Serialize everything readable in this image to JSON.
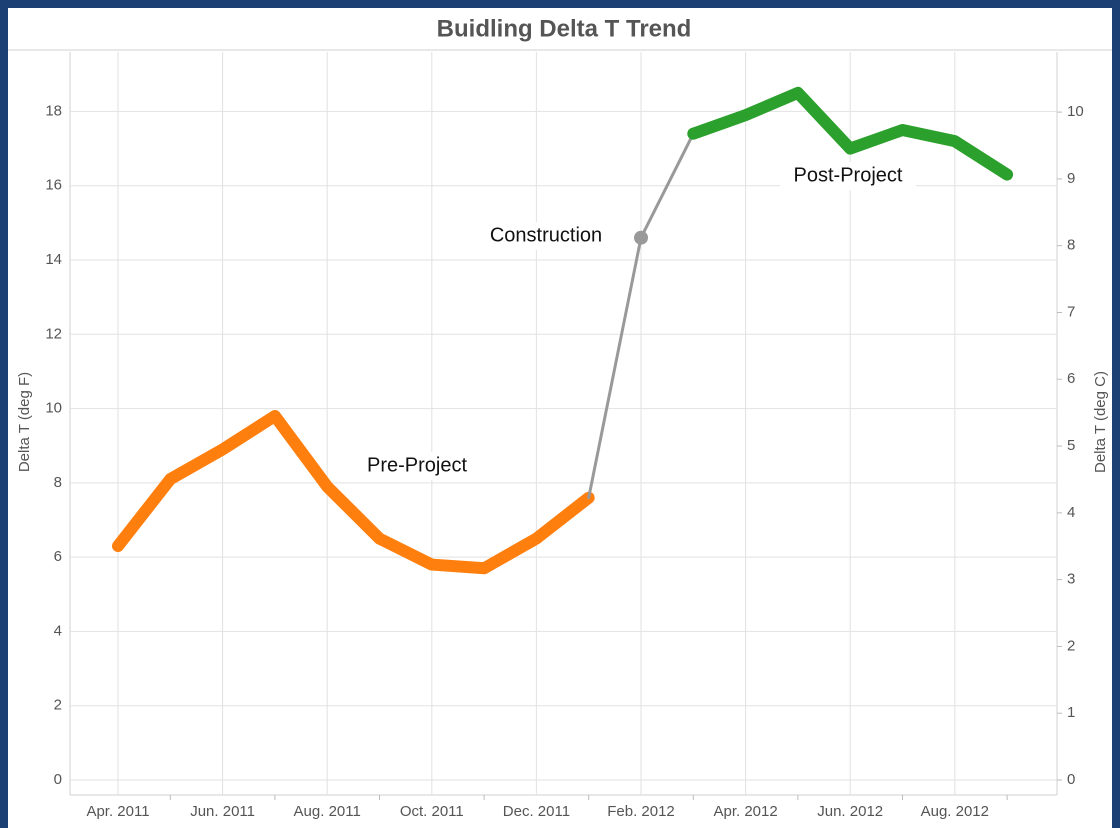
{
  "chart_data": {
    "type": "line",
    "title": "Buidling Delta T Trend",
    "y_label": "Delta T (deg F)",
    "y2_label": "Delta T (deg C)",
    "categories": [
      "Apr. 2011",
      null,
      "Jun. 2011",
      null,
      "Aug. 2011",
      null,
      "Oct. 2011",
      null,
      "Dec. 2011",
      null,
      "Feb. 2012",
      null,
      "Apr. 2012",
      null,
      "Jun. 2012",
      null,
      "Aug. 2012",
      null
    ],
    "series": [
      {
        "name": "Pre-Project",
        "color": "#ff7f0e",
        "values": [
          6.3,
          8.1,
          8.9,
          9.8,
          7.9,
          6.5,
          5.8,
          5.7,
          6.5,
          7.6,
          null,
          null,
          null,
          null,
          null,
          null,
          null,
          null
        ]
      },
      {
        "name": "Construction",
        "color": "#999999",
        "values": [
          null,
          null,
          null,
          null,
          null,
          null,
          null,
          null,
          null,
          7.6,
          14.6,
          17.4,
          null,
          null,
          null,
          null,
          null,
          null
        ]
      },
      {
        "name": "Post-Project",
        "color": "#2ca02c",
        "values": [
          null,
          null,
          null,
          null,
          null,
          null,
          null,
          null,
          null,
          null,
          null,
          17.4,
          17.9,
          18.5,
          17.0,
          17.5,
          17.2,
          16.3
        ]
      }
    ],
    "ylim": [
      0,
      19.6
    ],
    "yticks": [
      0,
      2,
      4,
      6,
      8,
      10,
      12,
      14,
      16,
      18
    ],
    "y2lim": [
      0,
      10.9
    ],
    "y2ticks": [
      0,
      1,
      2,
      3,
      4,
      5,
      6,
      7,
      8,
      9,
      10
    ],
    "grid": true
  }
}
